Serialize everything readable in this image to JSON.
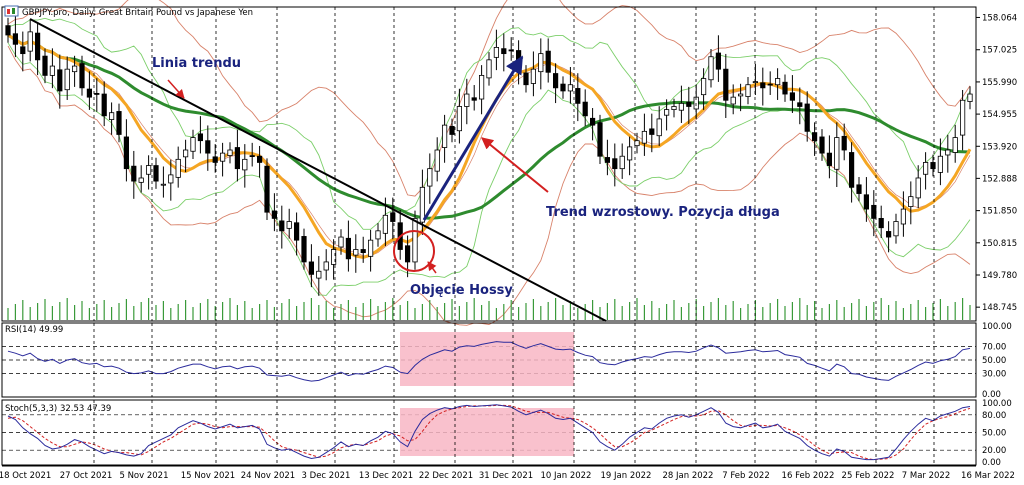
{
  "header": {
    "symbol": "GBPJPY.pro",
    "sep": ",",
    "period": "Daily",
    "desc": "Great Britain Pound vs Japanese Yen"
  },
  "colors": {
    "bull": "#000000",
    "bear": "#ffffff",
    "ma_fast": "#f5a623",
    "ma_slow": "#2e8b2e",
    "bb_outer": "#d8826a",
    "bb_inner": "#7ccf6a",
    "trendline": "#000000",
    "arrow_up": "#1a237e",
    "pointer": "#d32020",
    "highlight": "#f8b6c4",
    "rsi": "#2b2b9c",
    "stoch_main": "#2b2b9c",
    "stoch_signal": "#d32020",
    "volume": "#3a9a3a"
  },
  "annotations": {
    "trendline": "Linia trendu",
    "uptrend": "Trend wzrostowy. Pozycja długa",
    "breakout": "Objęcie Hossy"
  },
  "chart_data": [
    {
      "type": "candlestick",
      "title": "GBPJPY.pro, Daily:  Great Britain Pound vs Japanese Yen",
      "ylim": [
        148.3,
        158.4
      ],
      "yticks": [
        "158.064",
        "157.025",
        "155.990",
        "154.955",
        "153.920",
        "152.888",
        "151.850",
        "150.815",
        "149.780",
        "148.745"
      ],
      "xticks": [
        "18 Oct 2021",
        "27 Oct 2021",
        "5 Nov 2021",
        "15 Nov 2021",
        "24 Nov 2021",
        "3 Dec 2021",
        "13 Dec 2021",
        "22 Dec 2021",
        "31 Dec 2021",
        "10 Jan 2022",
        "19 Jan 2022",
        "28 Jan 2022",
        "7 Feb 2022",
        "16 Feb 2022",
        "25 Feb 2022",
        "7 Mar 2022",
        "16 Mar 2022"
      ],
      "close": [
        157.5,
        157.2,
        156.9,
        157.6,
        156.7,
        156.2,
        156.5,
        155.7,
        156.4,
        156.5,
        155.8,
        155.5,
        155.6,
        154.9,
        155.0,
        154.3,
        153.2,
        152.8,
        152.9,
        153.3,
        152.8,
        152.7,
        153.0,
        153.5,
        153.8,
        154.2,
        154.1,
        153.7,
        153.4,
        153.7,
        153.8,
        153.2,
        153.5,
        153.6,
        153.4,
        151.8,
        151.6,
        151.2,
        151.5,
        150.9,
        150.2,
        149.8,
        149.9,
        150.2,
        150.6,
        151.0,
        150.3,
        150.6,
        150.5,
        150.9,
        151.2,
        151.7,
        151.5,
        150.6,
        150.2,
        151.6,
        152.6,
        153.2,
        153.8,
        154.6,
        154.3,
        155.2,
        155.6,
        155.4,
        156.2,
        156.7,
        157.1,
        156.9,
        157.0,
        156.4,
        155.9,
        156.4,
        156.9,
        156.3,
        155.8,
        155.7,
        155.9,
        155.3,
        154.9,
        154.6,
        153.6,
        153.4,
        153.2,
        153.6,
        153.9,
        154.1,
        154.4,
        154.3,
        154.8,
        155.1,
        155.2,
        155.3,
        155.2,
        155.5,
        156.1,
        156.8,
        156.4,
        155.4,
        155.5,
        155.6,
        155.9,
        156.0,
        155.8,
        155.9,
        156.1,
        155.6,
        155.4,
        155.2,
        154.4,
        154.1,
        153.7,
        153.3,
        154.2,
        153.8,
        152.6,
        152.4,
        151.9,
        151.6,
        151.3,
        151.0,
        151.5,
        151.9,
        152.3,
        152.9,
        153.4,
        153.2,
        153.6,
        153.8,
        154.2,
        155.4,
        155.6
      ]
    },
    {
      "type": "line",
      "title": "RSI(14) 49.99",
      "ylim": [
        0,
        100
      ],
      "yticks": [
        "100.00",
        "70.00",
        "50.00",
        "30.00",
        "0.00"
      ],
      "values": [
        63,
        60,
        56,
        60,
        52,
        48,
        51,
        45,
        50,
        52,
        46,
        44,
        45,
        40,
        41,
        38,
        32,
        30,
        31,
        34,
        30,
        30,
        33,
        38,
        41,
        44,
        44,
        40,
        37,
        40,
        41,
        37,
        40,
        41,
        38,
        28,
        27,
        26,
        28,
        24,
        21,
        19,
        20,
        24,
        28,
        32,
        27,
        30,
        29,
        33,
        36,
        41,
        39,
        32,
        30,
        42,
        51,
        57,
        61,
        65,
        63,
        69,
        71,
        70,
        73,
        75,
        77,
        76,
        76,
        71,
        67,
        71,
        74,
        70,
        66,
        65,
        66,
        61,
        57,
        55,
        46,
        44,
        43,
        47,
        50,
        52,
        55,
        54,
        58,
        61,
        62,
        62,
        61,
        63,
        68,
        72,
        68,
        60,
        61,
        62,
        64,
        65,
        62,
        63,
        64,
        58,
        56,
        54,
        45,
        42,
        38,
        34,
        44,
        40,
        30,
        29,
        25,
        23,
        21,
        20,
        26,
        31,
        36,
        42,
        47,
        45,
        49,
        51,
        55,
        65,
        67
      ]
    },
    {
      "type": "line",
      "title": "Stoch(5,3,3) 32.53 47.39",
      "ylim": [
        0,
        100
      ],
      "yticks": [
        "100.00",
        "80.00",
        "50.00",
        "20.00",
        "0.00"
      ],
      "series": [
        {
          "values": [
            78,
            72,
            58,
            48,
            40,
            28,
            22,
            24,
            30,
            38,
            34,
            26,
            20,
            14,
            18,
            16,
            12,
            10,
            14,
            28,
            34,
            40,
            46,
            58,
            64,
            70,
            66,
            60,
            56,
            60,
            64,
            58,
            60,
            62,
            56,
            30,
            24,
            20,
            22,
            16,
            10,
            6,
            8,
            16,
            24,
            34,
            26,
            30,
            28,
            36,
            42,
            52,
            48,
            34,
            26,
            52,
            72,
            82,
            88,
            92,
            90,
            94,
            96,
            94,
            95,
            96,
            97,
            95,
            93,
            86,
            80,
            84,
            88,
            82,
            74,
            72,
            74,
            66,
            58,
            50,
            34,
            26,
            20,
            30,
            42,
            50,
            58,
            56,
            66,
            74,
            78,
            80,
            76,
            80,
            86,
            92,
            84,
            66,
            60,
            58,
            62,
            66,
            58,
            60,
            64,
            52,
            46,
            40,
            28,
            20,
            14,
            10,
            22,
            18,
            8,
            6,
            4,
            4,
            6,
            8,
            22,
            38,
            52,
            64,
            74,
            70,
            78,
            82,
            86,
            92,
            94
          ]
        },
        {
          "values": [
            74,
            76,
            70,
            60,
            50,
            40,
            32,
            26,
            26,
            30,
            34,
            32,
            28,
            22,
            18,
            16,
            16,
            14,
            12,
            18,
            26,
            34,
            40,
            48,
            56,
            64,
            66,
            64,
            60,
            58,
            60,
            60,
            60,
            60,
            59,
            48,
            36,
            26,
            22,
            20,
            16,
            12,
            8,
            10,
            16,
            24,
            28,
            30,
            28,
            32,
            36,
            44,
            48,
            44,
            36,
            38,
            52,
            68,
            80,
            86,
            90,
            92,
            94,
            95,
            95,
            95,
            96,
            96,
            95,
            91,
            86,
            84,
            84,
            84,
            80,
            76,
            74,
            72,
            66,
            58,
            48,
            36,
            26,
            26,
            32,
            40,
            50,
            54,
            60,
            66,
            72,
            77,
            78,
            78,
            80,
            86,
            87,
            80,
            70,
            62,
            60,
            62,
            62,
            61,
            62,
            58,
            53,
            46,
            38,
            28,
            20,
            14,
            16,
            17,
            16,
            10,
            6,
            4,
            5,
            6,
            12,
            22,
            38,
            52,
            64,
            70,
            74,
            77,
            82,
            87,
            91
          ]
        }
      ]
    }
  ]
}
